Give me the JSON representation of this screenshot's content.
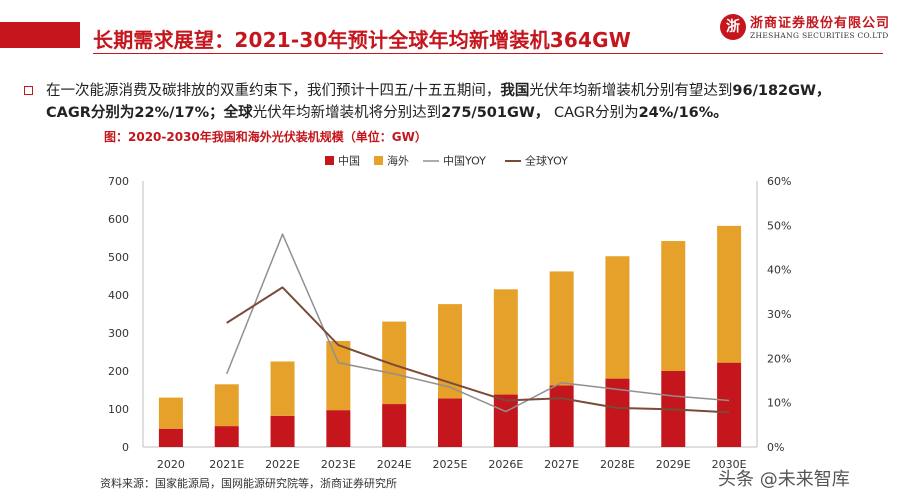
{
  "header": {
    "title": "长期需求展望：2021-30年预计全球年均新增装机364GW",
    "logo_cn": "浙商证券股份有限公司",
    "logo_en": "ZHESHANG SECURITIES CO.LTD"
  },
  "body": {
    "p1": "在一次能源消费及碳排放的双重约束下，我们预计十四五/十五五期间，",
    "p1_bold1": "我国",
    "p1_b": "光伏年均新增装机分别有望达到",
    "p1_bold2": "96/182GW，",
    "p2_bold1": "CAGR分别为22%/17%；",
    "p2_bold2": "全球",
    "p2_b": "光伏年均新增装机将分别达到",
    "p2_bold3": "275/501GW，",
    "p2_c": " CAGR分别为",
    "p2_bold4": "24%/16%。"
  },
  "chart_title": "图：2020-2030年我国和海外光伏装机规模（单位：GW）",
  "source": "资料来源：国家能源局，国网能源研究院等，浙商证券研究所",
  "watermark": "头条 @未来智库",
  "colors": {
    "china": "#c4161c",
    "overseas": "#e5a12a",
    "china_yoy": "#909090",
    "global_yoy": "#7b4a3a",
    "brand": "#c4161c"
  },
  "chart_data": {
    "type": "bar",
    "stacked": true,
    "categories": [
      "2020",
      "2021E",
      "2022E",
      "2023E",
      "2024E",
      "2025E",
      "2026E",
      "2027E",
      "2028E",
      "2029E",
      "2030E"
    ],
    "series": [
      {
        "name": "中国",
        "kind": "bar",
        "axis": "left",
        "values": [
          48,
          55,
          82,
          97,
          113,
          128,
          138,
          162,
          180,
          200,
          222
        ]
      },
      {
        "name": "海外",
        "kind": "bar",
        "axis": "left",
        "values": [
          82,
          110,
          143,
          182,
          217,
          248,
          277,
          300,
          322,
          342,
          360
        ]
      },
      {
        "name": "中国YOY",
        "kind": "line",
        "axis": "right",
        "values": [
          null,
          0.165,
          0.48,
          0.19,
          0.165,
          0.135,
          0.08,
          0.145,
          0.13,
          0.115,
          0.105
        ]
      },
      {
        "name": "全球YOY",
        "kind": "line",
        "axis": "right",
        "values": [
          null,
          0.28,
          0.36,
          0.23,
          0.185,
          0.145,
          0.105,
          0.11,
          0.088,
          0.085,
          0.078
        ]
      }
    ],
    "y_left": {
      "min": 0,
      "max": 700,
      "ticks": [
        "0",
        "100",
        "200",
        "300",
        "400",
        "500",
        "600",
        "700"
      ]
    },
    "y_right": {
      "min": 0,
      "max": 0.6,
      "ticks": [
        "0%",
        "10%",
        "20%",
        "30%",
        "40%",
        "50%",
        "60%"
      ]
    },
    "legend": [
      "中国",
      "海外",
      "中国YOY",
      "全球YOY"
    ],
    "legend_position": "top-center"
  }
}
